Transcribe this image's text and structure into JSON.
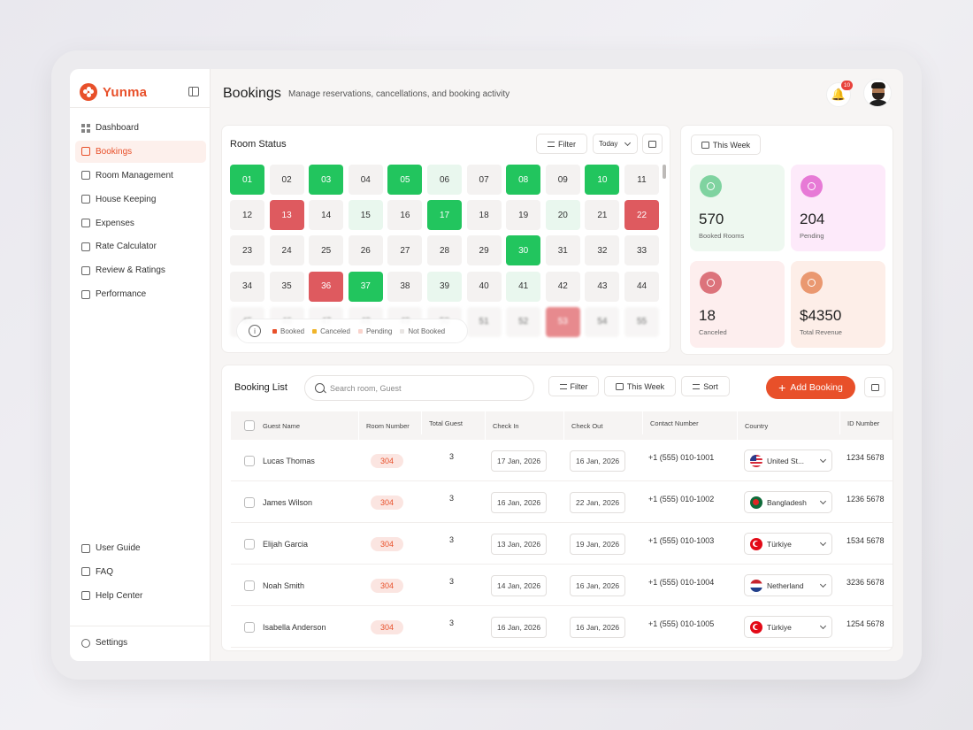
{
  "brand": "Yunma",
  "header": {
    "title": "Bookings",
    "subtitle": "Manage reservations, cancellations, and booking activity",
    "notification_count": "10"
  },
  "sidebar": {
    "items": [
      {
        "label": "Dashboard",
        "icon": "grid-icon"
      },
      {
        "label": "Bookings",
        "icon": "calendar-icon",
        "active": true
      },
      {
        "label": "Room Management",
        "icon": "home-icon"
      },
      {
        "label": "House Keeping",
        "icon": "broom-icon"
      },
      {
        "label": "Expenses",
        "icon": "receipt-icon"
      },
      {
        "label": "Rate Calculator",
        "icon": "calculator-icon"
      },
      {
        "label": "Review & Ratings",
        "icon": "star-icon"
      },
      {
        "label": "Performance",
        "icon": "chart-icon"
      }
    ],
    "bottom_items": [
      {
        "label": "User Guide",
        "icon": "book-icon"
      },
      {
        "label": "FAQ",
        "icon": "question-icon"
      },
      {
        "label": "Help Center",
        "icon": "headset-icon"
      }
    ],
    "settings": "Settings"
  },
  "room_status": {
    "title": "Room Status",
    "filter_label": "Filter",
    "period_label": "Today",
    "legend": [
      "Booked",
      "Canceled",
      "Pending",
      "Not Booked"
    ],
    "legend_colors": [
      "#e8502a",
      "#f0b429",
      "#f9d3cc",
      "#e8e5e3"
    ],
    "rooms": [
      {
        "n": "01",
        "s": "booked"
      },
      {
        "n": "02",
        "s": "none"
      },
      {
        "n": "03",
        "s": "booked"
      },
      {
        "n": "04",
        "s": "none"
      },
      {
        "n": "05",
        "s": "booked"
      },
      {
        "n": "06",
        "s": "pending"
      },
      {
        "n": "07",
        "s": "none"
      },
      {
        "n": "08",
        "s": "booked"
      },
      {
        "n": "09",
        "s": "none"
      },
      {
        "n": "10",
        "s": "booked"
      },
      {
        "n": "11",
        "s": "none"
      },
      {
        "n": "12",
        "s": "none"
      },
      {
        "n": "13",
        "s": "canceled"
      },
      {
        "n": "14",
        "s": "none"
      },
      {
        "n": "15",
        "s": "pending"
      },
      {
        "n": "16",
        "s": "none"
      },
      {
        "n": "17",
        "s": "booked"
      },
      {
        "n": "18",
        "s": "none"
      },
      {
        "n": "19",
        "s": "none"
      },
      {
        "n": "20",
        "s": "pending"
      },
      {
        "n": "21",
        "s": "none"
      },
      {
        "n": "22",
        "s": "canceled"
      },
      {
        "n": "23",
        "s": "none"
      },
      {
        "n": "24",
        "s": "none"
      },
      {
        "n": "25",
        "s": "none"
      },
      {
        "n": "26",
        "s": "none"
      },
      {
        "n": "27",
        "s": "none"
      },
      {
        "n": "28",
        "s": "none"
      },
      {
        "n": "29",
        "s": "none"
      },
      {
        "n": "30",
        "s": "booked"
      },
      {
        "n": "31",
        "s": "none"
      },
      {
        "n": "32",
        "s": "none"
      },
      {
        "n": "33",
        "s": "none"
      },
      {
        "n": "34",
        "s": "none"
      },
      {
        "n": "35",
        "s": "none"
      },
      {
        "n": "36",
        "s": "canceled"
      },
      {
        "n": "37",
        "s": "booked"
      },
      {
        "n": "38",
        "s": "none"
      },
      {
        "n": "39",
        "s": "pending"
      },
      {
        "n": "40",
        "s": "none"
      },
      {
        "n": "41",
        "s": "pending"
      },
      {
        "n": "42",
        "s": "none"
      },
      {
        "n": "43",
        "s": "none"
      },
      {
        "n": "44",
        "s": "none"
      },
      {
        "n": "45",
        "s": "none"
      },
      {
        "n": "46",
        "s": "none"
      },
      {
        "n": "47",
        "s": "none"
      },
      {
        "n": "48",
        "s": "none"
      },
      {
        "n": "49",
        "s": "none"
      },
      {
        "n": "50",
        "s": "none"
      },
      {
        "n": "51",
        "s": "none"
      },
      {
        "n": "52",
        "s": "none"
      },
      {
        "n": "53",
        "s": "canceled"
      },
      {
        "n": "54",
        "s": "none"
      },
      {
        "n": "55",
        "s": "none"
      }
    ]
  },
  "stats": {
    "period_label": "This Week",
    "cards": [
      {
        "value": "570",
        "label": "Booked Rooms",
        "bg": "#eef8f0",
        "icon_bg": "#7fd3a0",
        "icon": "home-icon"
      },
      {
        "value": "204",
        "label": "Pending",
        "bg": "#fdeafa",
        "icon_bg": "#e77ad6",
        "icon": "clock-icon"
      },
      {
        "value": "18",
        "label": "Canceled",
        "bg": "#fdeeee",
        "icon_bg": "#dc737b",
        "icon": "cancel-icon"
      },
      {
        "value": "$4350",
        "label": "Total Revenue",
        "bg": "#fdeee8",
        "icon_bg": "#ea9870",
        "icon": "revenue-icon"
      }
    ]
  },
  "booking_list": {
    "title": "Booking List",
    "search_placeholder": "Search room, Guest",
    "filter_label": "Filter",
    "period_label": "This Week",
    "sort_label": "Sort",
    "add_label": "Add Booking",
    "columns": [
      "Guest Name",
      "Room Number",
      "Total Guest",
      "Check In",
      "Check Out",
      "Contact Number",
      "Country",
      "ID Number"
    ],
    "rows": [
      {
        "name": "Lucas Thomas",
        "room": "304",
        "guests": "3",
        "check_in": "17 Jan, 2026",
        "check_out": "16 Jan, 2026",
        "contact": "+1 (555) 010-1001",
        "country": "United St...",
        "flag": "us",
        "id": "1234 5678"
      },
      {
        "name": "James Wilson",
        "room": "304",
        "guests": "3",
        "check_in": "16 Jan, 2026",
        "check_out": "22 Jan, 2026",
        "contact": "+1 (555) 010-1002",
        "country": "Bangladesh",
        "flag": "bd",
        "id": "1236 5678"
      },
      {
        "name": "Elijah Garcia",
        "room": "304",
        "guests": "3",
        "check_in": "13 Jan, 2026",
        "check_out": "19 Jan, 2026",
        "contact": "+1 (555) 010-1003",
        "country": "Türkiye",
        "flag": "tr",
        "id": "1534 5678"
      },
      {
        "name": "Noah Smith",
        "room": "304",
        "guests": "3",
        "check_in": "14 Jan, 2026",
        "check_out": "16 Jan, 2026",
        "contact": "+1 (555) 010-1004",
        "country": "Netherland",
        "flag": "nl",
        "id": "3236 5678"
      },
      {
        "name": "Isabella Anderson",
        "room": "304",
        "guests": "3",
        "check_in": "16 Jan, 2026",
        "check_out": "16 Jan, 2026",
        "contact": "+1 (555) 010-1005",
        "country": "Türkiye",
        "flag": "tr",
        "id": "1254 5678"
      }
    ]
  }
}
